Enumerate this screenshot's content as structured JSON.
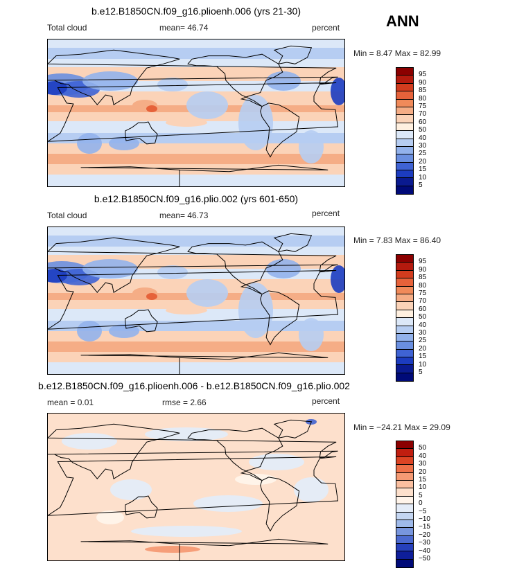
{
  "season": "ANN",
  "panels": [
    {
      "title": "b.e12.B1850CN.f09_g16.plioenh.006 (yrs 21-30)",
      "left": "Total cloud",
      "stat1": "mean=  46.74",
      "stat2": "",
      "units": "percent",
      "minmax": "Min =    8.47 Max =  82.99",
      "kind": "abs",
      "levels": [
        "95",
        "90",
        "85",
        "80",
        "75",
        "70",
        "60",
        "50",
        "40",
        "30",
        "25",
        "20",
        "15",
        "10",
        "5"
      ]
    },
    {
      "title": "b.e12.B1850CN.f09_g16.plio.002 (yrs 601-650)",
      "left": "Total cloud",
      "stat1": "mean=  46.73",
      "stat2": "",
      "units": "percent",
      "minmax": "Min =    7.83 Max =  86.40",
      "kind": "abs",
      "levels": [
        "95",
        "90",
        "85",
        "80",
        "75",
        "70",
        "60",
        "50",
        "40",
        "30",
        "25",
        "20",
        "15",
        "10",
        "5"
      ]
    },
    {
      "title": "b.e12.B1850CN.f09_g16.plioenh.006 - b.e12.B1850CN.f09_g16.plio.002",
      "left": "mean =    0.01",
      "stat1": "rmse =    2.66",
      "stat2": "",
      "units": "percent",
      "minmax": "Min = −24.21 Max =  29.09",
      "kind": "diff",
      "levels": [
        "50",
        "40",
        "30",
        "20",
        "15",
        "10",
        "5",
        "0",
        "−5",
        "−10",
        "−15",
        "−20",
        "−30",
        "−40",
        "−50"
      ]
    }
  ],
  "colors": {
    "abs": [
      "#8b0000",
      "#b41a0e",
      "#d23c1e",
      "#e6623a",
      "#f08a5a",
      "#f5ad86",
      "#fbd3b8",
      "#fff0e0",
      "#dce8f8",
      "#b6cdf2",
      "#92b2ec",
      "#6a8fe0",
      "#3f63d4",
      "#1c3cc0",
      "#0a1a90",
      "#000a78"
    ],
    "diff": [
      "#8b0000",
      "#c01e10",
      "#dc4424",
      "#ee7048",
      "#f59a74",
      "#fabfa0",
      "#fde0cc",
      "#fff4ea",
      "#e4ecf8",
      "#c4d6f2",
      "#9fbaea",
      "#7896de",
      "#4c6ad0",
      "#2640bc",
      "#0e1e9a",
      "#000a78"
    ]
  },
  "chart_data": {
    "type": "heatmap",
    "variable": "Total cloud",
    "units": "percent",
    "season": "ANN",
    "maps": [
      {
        "case": "b.e12.B1850CN.f09_g16.plioenh.006 (yrs 21-30)",
        "mean": 46.74,
        "min": 8.47,
        "max": 82.99,
        "levels": [
          5,
          10,
          15,
          20,
          25,
          30,
          40,
          50,
          60,
          70,
          75,
          80,
          85,
          90,
          95
        ]
      },
      {
        "case": "b.e12.B1850CN.f09_g16.plio.002 (yrs 601-650)",
        "mean": 46.73,
        "min": 7.83,
        "max": 86.4,
        "levels": [
          5,
          10,
          15,
          20,
          25,
          30,
          40,
          50,
          60,
          70,
          75,
          80,
          85,
          90,
          95
        ]
      },
      {
        "case": "b.e12.B1850CN.f09_g16.plioenh.006 - b.e12.B1850CN.f09_g16.plio.002",
        "mean": 0.01,
        "rmse": 2.66,
        "min": -24.21,
        "max": 29.09,
        "levels": [
          -50,
          -40,
          -30,
          -20,
          -15,
          -10,
          -5,
          0,
          5,
          10,
          15,
          20,
          30,
          40,
          50
        ]
      }
    ]
  }
}
